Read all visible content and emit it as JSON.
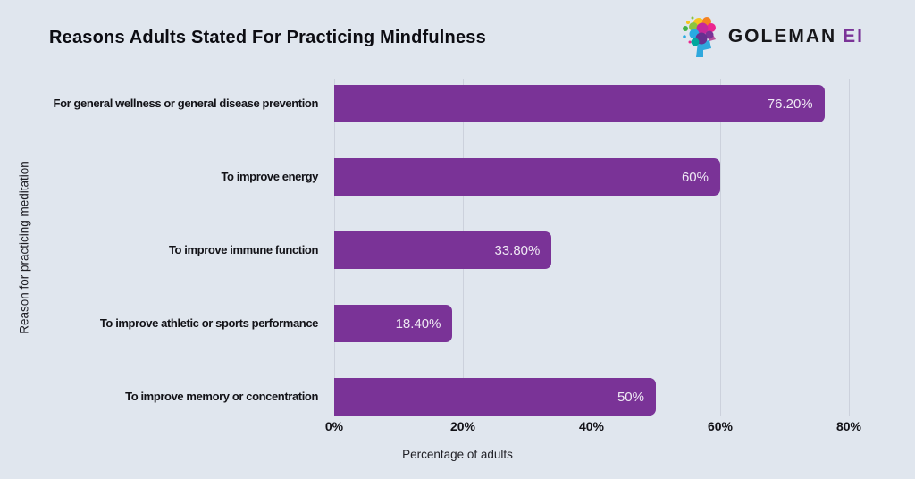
{
  "header": {
    "title": "Reasons Adults Stated For Practicing Mindfulness"
  },
  "logo": {
    "icon": "colorful-brain-head-icon",
    "brand": "GOLEMAN",
    "suffix": "EI",
    "brand_color": "#17171a",
    "suffix_color": "#7a3397"
  },
  "chart_data": {
    "type": "bar",
    "orientation": "horizontal",
    "title": "Reasons Adults Stated For Practicing Mindfulness",
    "categories": [
      "For general wellness or general disease prevention",
      "To improve energy",
      "To improve immune function",
      "To improve athletic or sports performance",
      "To improve memory or concentration"
    ],
    "values": [
      76.2,
      60,
      33.8,
      18.4,
      50
    ],
    "value_labels": [
      "76.20%",
      "60%",
      "33.80%",
      "18.40%",
      "50%"
    ],
    "xlabel": "Percentage of adults",
    "ylabel": "Reason for practicing meditation",
    "xlim": [
      0,
      90
    ],
    "xticks": [
      0,
      20,
      40,
      60,
      80
    ],
    "xtick_labels": [
      "0%",
      "20%",
      "40%",
      "60%",
      "80%"
    ],
    "grid": "vertical",
    "legend": "none",
    "bar_color": "#7a3397",
    "background_color": "#e0e6ee",
    "value_label_color": "#efe9f4"
  }
}
